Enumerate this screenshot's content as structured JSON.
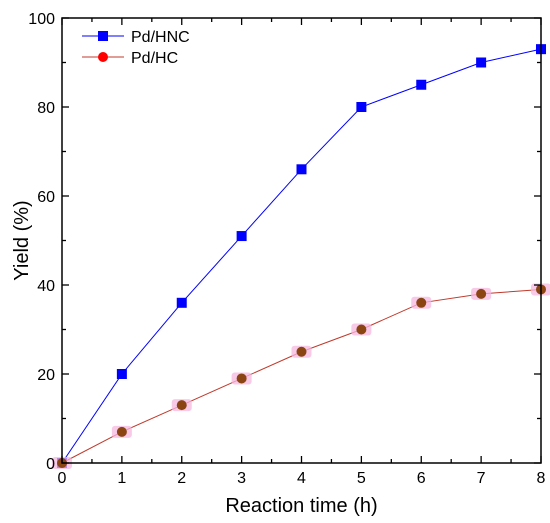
{
  "chart_data": {
    "type": "line",
    "xlabel": "Reaction time (h)",
    "ylabel": "Yield (%)",
    "xlim": [
      0,
      8
    ],
    "ylim": [
      0,
      100
    ],
    "xticks": [
      0,
      1,
      2,
      3,
      4,
      5,
      6,
      7,
      8
    ],
    "yticks": [
      0,
      20,
      40,
      60,
      80,
      100
    ],
    "grid": false,
    "legend_position": "top-left",
    "x": [
      0,
      1,
      2,
      3,
      4,
      5,
      6,
      7,
      8
    ],
    "series": [
      {
        "name": "Pd/HNC",
        "marker": "square",
        "color": "#0000ff",
        "marker_color": "#0000ff",
        "values": [
          0,
          20,
          36,
          51,
          66,
          80,
          85,
          90,
          93
        ]
      },
      {
        "name": "Pd/HC",
        "marker": "circle",
        "color": "#c0392b",
        "marker_color": "#8b4513",
        "legend_marker_color": "#ff0000",
        "halo_color": "#f5b8e0",
        "values": [
          0,
          7,
          13,
          19,
          25,
          30,
          36,
          38,
          39
        ]
      }
    ]
  }
}
